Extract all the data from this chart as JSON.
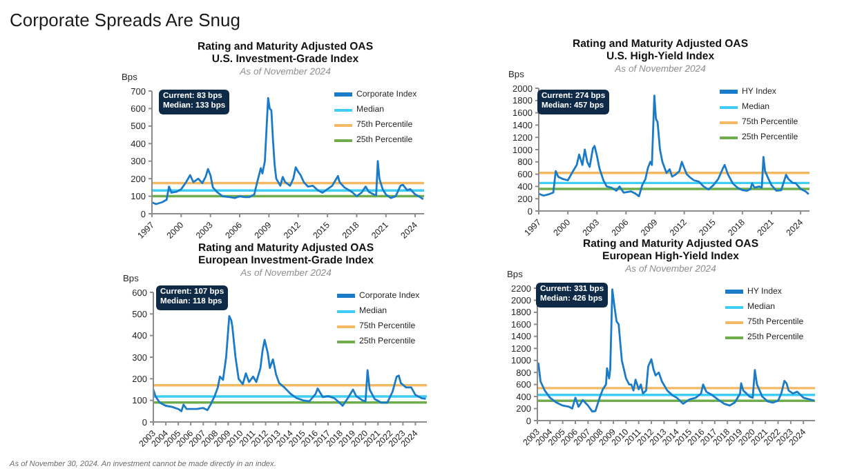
{
  "chart_data": [
    {
      "type": "other",
      "title": "Corporate Spreads Are Snug"
    },
    {
      "type": "line",
      "title": "Rating and Maturity Adjusted OAS\nU.S. Investment-Grade Index",
      "subtitle": "As of November 2024",
      "ylabel": "Bps",
      "x": [
        "1997-01",
        "1997-06",
        "1998-01",
        "1998-07",
        "1998-10",
        "1999-01",
        "1999-07",
        "2000-01",
        "2000-07",
        "2000-12",
        "2001-04",
        "2001-10",
        "2002-03",
        "2002-07",
        "2002-10",
        "2003-01",
        "2003-04",
        "2003-10",
        "2004-04",
        "2005-01",
        "2005-07",
        "2006-01",
        "2006-07",
        "2007-01",
        "2007-07",
        "2007-10",
        "2008-03",
        "2008-05",
        "2008-08",
        "2008-10",
        "2008-12",
        "2009-02",
        "2009-04",
        "2009-06",
        "2009-08",
        "2009-10",
        "2010-03",
        "2010-06",
        "2010-09",
        "2011-03",
        "2011-07",
        "2011-10",
        "2012-01",
        "2012-04",
        "2012-08",
        "2013-01",
        "2013-07",
        "2014-01",
        "2014-07",
        "2015-01",
        "2015-07",
        "2016-02",
        "2016-04",
        "2016-10",
        "2017-07",
        "2018-01",
        "2018-07",
        "2018-12",
        "2019-04",
        "2019-10",
        "2020-01",
        "2020-03",
        "2020-05",
        "2020-09",
        "2021-01",
        "2021-07",
        "2022-01",
        "2022-07",
        "2022-10",
        "2023-03",
        "2023-07",
        "2024-01",
        "2024-07",
        "2024-11"
      ],
      "series": [
        {
          "name": "Corporate Index",
          "color": "#1a7bc9",
          "values": [
            65,
            55,
            65,
            80,
            155,
            120,
            125,
            140,
            180,
            220,
            180,
            200,
            175,
            210,
            255,
            220,
            150,
            120,
            100,
            95,
            90,
            100,
            95,
            95,
            110,
            170,
            260,
            230,
            300,
            480,
            660,
            600,
            590,
            420,
            280,
            200,
            160,
            210,
            180,
            160,
            200,
            265,
            240,
            220,
            180,
            155,
            160,
            135,
            120,
            140,
            160,
            215,
            180,
            150,
            125,
            100,
            120,
            155,
            125,
            110,
            105,
            300,
            200,
            140,
            110,
            90,
            100,
            160,
            165,
            135,
            140,
            110,
            95,
            83
          ]
        }
      ],
      "xlim": [
        "1997-01",
        "2024-12"
      ],
      "xticks": [
        "1997",
        "2000",
        "2003",
        "2006",
        "2009",
        "2012",
        "2015",
        "2018",
        "2021",
        "2024"
      ],
      "ylim": [
        0,
        700
      ],
      "yticks": [
        0,
        100,
        200,
        300,
        400,
        500,
        600,
        700
      ],
      "ref_lines": [
        {
          "axis": "y",
          "value": 133,
          "label": "Median",
          "color": "#3dcdf5"
        },
        {
          "axis": "y",
          "value": 175,
          "label": "75th Percentile",
          "color": "#f4b862"
        },
        {
          "axis": "y",
          "value": 100,
          "label": "25th Percentile",
          "color": "#6fac4b"
        }
      ],
      "legend": "top right",
      "annotations": [
        "Current: 83 bps",
        "Median: 133 bps"
      ]
    },
    {
      "type": "line",
      "title": "Rating and Maturity Adjusted OAS\nU.S. High-Yield Index",
      "subtitle": "As of November 2024",
      "ylabel": "Bps",
      "x": [
        "1997-01",
        "1997-07",
        "1998-01",
        "1998-07",
        "1998-10",
        "1999-01",
        "1999-07",
        "2000-01",
        "2000-07",
        "2000-12",
        "2001-03",
        "2001-07",
        "2001-10",
        "2002-01",
        "2002-04",
        "2002-08",
        "2002-10",
        "2003-01",
        "2003-04",
        "2003-09",
        "2004-01",
        "2004-07",
        "2005-01",
        "2005-05",
        "2005-10",
        "2006-07",
        "2007-01",
        "2007-05",
        "2007-09",
        "2008-01",
        "2008-04",
        "2008-07",
        "2008-09",
        "2008-12",
        "2009-02",
        "2009-04",
        "2009-07",
        "2009-10",
        "2010-03",
        "2010-07",
        "2010-10",
        "2011-03",
        "2011-07",
        "2011-10",
        "2012-01",
        "2012-04",
        "2012-08",
        "2013-01",
        "2013-07",
        "2014-01",
        "2014-07",
        "2015-01",
        "2015-07",
        "2016-01",
        "2016-03",
        "2016-07",
        "2017-01",
        "2017-07",
        "2018-01",
        "2018-07",
        "2018-11",
        "2019-01",
        "2019-04",
        "2019-10",
        "2020-01",
        "2020-03",
        "2020-05",
        "2020-09",
        "2021-01",
        "2021-07",
        "2022-01",
        "2022-07",
        "2022-10",
        "2023-03",
        "2023-07",
        "2024-01",
        "2024-07",
        "2024-11"
      ],
      "series": [
        {
          "name": "HY Index",
          "color": "#1a7bc9",
          "values": [
            280,
            250,
            270,
            300,
            650,
            560,
            520,
            500,
            640,
            750,
            920,
            750,
            1000,
            800,
            720,
            1020,
            1060,
            900,
            700,
            500,
            400,
            380,
            330,
            400,
            300,
            320,
            280,
            240,
            420,
            520,
            700,
            800,
            750,
            1880,
            1500,
            1450,
            1000,
            800,
            620,
            680,
            560,
            600,
            650,
            800,
            700,
            600,
            550,
            500,
            480,
            400,
            350,
            420,
            520,
            700,
            750,
            600,
            450,
            380,
            340,
            330,
            360,
            450,
            380,
            400,
            380,
            880,
            650,
            530,
            420,
            330,
            340,
            590,
            520,
            460,
            450,
            360,
            320,
            274
          ]
        }
      ],
      "xlim": [
        "1997-01",
        "2024-12"
      ],
      "xticks": [
        "1997",
        "2000",
        "2003",
        "2006",
        "2009",
        "2012",
        "2015",
        "2018",
        "2021",
        "2024"
      ],
      "ylim": [
        0,
        2000
      ],
      "yticks": [
        0,
        200,
        400,
        600,
        800,
        1000,
        1200,
        1400,
        1600,
        1800,
        2000
      ],
      "ref_lines": [
        {
          "axis": "y",
          "value": 457,
          "label": "Median",
          "color": "#3dcdf5"
        },
        {
          "axis": "y",
          "value": 620,
          "label": "75th Percentile",
          "color": "#f4b862"
        },
        {
          "axis": "y",
          "value": 360,
          "label": "25th Percentile",
          "color": "#6fac4b"
        }
      ],
      "legend": "top right",
      "annotations": [
        "Current: 274 bps",
        "Median: 457 bps"
      ]
    },
    {
      "type": "line",
      "title": "Rating and Maturity Adjusted OAS\nEuropean Investment-Grade Index",
      "subtitle": "As of November 2024",
      "ylabel": "Bps",
      "x": [
        "2003-01",
        "2003-03",
        "2003-07",
        "2004-01",
        "2004-07",
        "2005-01",
        "2005-04",
        "2005-06",
        "2005-09",
        "2006-01",
        "2006-07",
        "2007-01",
        "2007-05",
        "2007-08",
        "2007-12",
        "2008-03",
        "2008-05",
        "2008-08",
        "2008-11",
        "2009-02",
        "2009-04",
        "2009-05",
        "2009-08",
        "2009-11",
        "2010-03",
        "2010-06",
        "2010-09",
        "2011-01",
        "2011-04",
        "2011-08",
        "2011-10",
        "2011-12",
        "2012-03",
        "2012-05",
        "2012-08",
        "2012-11",
        "2013-02",
        "2013-07",
        "2014-01",
        "2014-07",
        "2015-01",
        "2015-07",
        "2016-01",
        "2016-03",
        "2016-08",
        "2017-01",
        "2017-07",
        "2018-01",
        "2018-03",
        "2018-08",
        "2019-01",
        "2019-04",
        "2019-10",
        "2020-01",
        "2020-03",
        "2020-05",
        "2020-10",
        "2021-04",
        "2021-10",
        "2022-03",
        "2022-07",
        "2022-09",
        "2022-11",
        "2023-04",
        "2023-09",
        "2024-01",
        "2024-07",
        "2024-11"
      ],
      "series": [
        {
          "name": "Corporate Index",
          "color": "#1a7bc9",
          "values": [
            150,
            120,
            90,
            75,
            70,
            60,
            50,
            80,
            60,
            60,
            60,
            65,
            55,
            80,
            120,
            160,
            210,
            195,
            300,
            490,
            470,
            440,
            300,
            200,
            175,
            225,
            185,
            210,
            185,
            250,
            330,
            380,
            320,
            250,
            290,
            220,
            180,
            160,
            130,
            110,
            100,
            95,
            130,
            155,
            115,
            120,
            110,
            85,
            75,
            110,
            150,
            120,
            100,
            95,
            240,
            150,
            105,
            90,
            90,
            140,
            210,
            215,
            180,
            160,
            160,
            125,
            110,
            107
          ]
        }
      ],
      "xlim": [
        "2003-01",
        "2024-12"
      ],
      "xticks": [
        "2003",
        "2004",
        "2005",
        "2006",
        "2007",
        "2008",
        "2009",
        "2010",
        "2011",
        "2012",
        "2013",
        "2014",
        "2015",
        "2016",
        "2017",
        "2018",
        "2019",
        "2020",
        "2021",
        "2022",
        "2023",
        "2024"
      ],
      "ylim": [
        0,
        600
      ],
      "yticks": [
        0,
        100,
        200,
        300,
        400,
        500,
        600
      ],
      "ref_lines": [
        {
          "axis": "y",
          "value": 118,
          "label": "Median",
          "color": "#3dcdf5"
        },
        {
          "axis": "y",
          "value": 170,
          "label": "75th Percentile",
          "color": "#f4b862"
        },
        {
          "axis": "y",
          "value": 90,
          "label": "25th Percentile",
          "color": "#6fac4b"
        }
      ],
      "legend": "top right",
      "annotations": [
        "Current: 107 bps",
        "Median: 118 bps"
      ]
    },
    {
      "type": "line",
      "title": "Rating and Maturity Adjusted OAS\nEuropean High-Yield Index",
      "subtitle": "As of November 2024",
      "ylabel": "Bps",
      "x": [
        "2003-01",
        "2003-02",
        "2003-04",
        "2003-08",
        "2004-01",
        "2004-07",
        "2005-01",
        "2005-07",
        "2005-10",
        "2006-01",
        "2006-04",
        "2006-08",
        "2007-01",
        "2007-05",
        "2007-08",
        "2007-12",
        "2008-03",
        "2008-06",
        "2008-07",
        "2008-09",
        "2008-10",
        "2008-12",
        "2009-02",
        "2009-04",
        "2009-06",
        "2009-09",
        "2010-01",
        "2010-04",
        "2010-06",
        "2010-08",
        "2010-10",
        "2011-01",
        "2011-03",
        "2011-05",
        "2011-08",
        "2011-10",
        "2012-01",
        "2012-03",
        "2012-05",
        "2012-08",
        "2012-11",
        "2013-04",
        "2013-09",
        "2014-01",
        "2014-07",
        "2015-01",
        "2015-07",
        "2015-12",
        "2016-02",
        "2016-05",
        "2016-10",
        "2017-04",
        "2017-10",
        "2018-03",
        "2018-08",
        "2019-01",
        "2019-02",
        "2019-04",
        "2019-10",
        "2020-01",
        "2020-03",
        "2020-05",
        "2020-10",
        "2021-03",
        "2021-08",
        "2022-01",
        "2022-04",
        "2022-07",
        "2022-09",
        "2022-11",
        "2023-03",
        "2023-07",
        "2024-01",
        "2024-07",
        "2024-11"
      ],
      "series": [
        {
          "name": "HY Index",
          "color": "#1a7bc9",
          "values": [
            900,
            950,
            650,
            500,
            380,
            300,
            250,
            230,
            200,
            380,
            230,
            340,
            250,
            150,
            160,
            380,
            520,
            600,
            870,
            700,
            850,
            2180,
            1900,
            1650,
            1600,
            1000,
            700,
            600,
            600,
            500,
            680,
            520,
            600,
            450,
            500,
            900,
            1020,
            850,
            750,
            800,
            650,
            500,
            420,
            380,
            280,
            350,
            380,
            450,
            600,
            480,
            430,
            350,
            280,
            250,
            300,
            450,
            620,
            500,
            400,
            380,
            840,
            600,
            400,
            320,
            300,
            330,
            450,
            660,
            620,
            500,
            450,
            480,
            380,
            350,
            331
          ]
        }
      ],
      "xlim": [
        "2003-01",
        "2024-12"
      ],
      "xticks": [
        "2003",
        "2004",
        "2005",
        "2006",
        "2007",
        "2008",
        "2009",
        "2010",
        "2011",
        "2012",
        "2013",
        "2014",
        "2015",
        "2016",
        "2017",
        "2018",
        "2019",
        "2020",
        "2021",
        "2022",
        "2023",
        "2024"
      ],
      "ylim": [
        0,
        2200
      ],
      "yticks": [
        0,
        200,
        400,
        600,
        800,
        1000,
        1200,
        1400,
        1600,
        1800,
        2000,
        2200
      ],
      "ref_lines": [
        {
          "axis": "y",
          "value": 426,
          "label": "Median",
          "color": "#3dcdf5"
        },
        {
          "axis": "y",
          "value": 540,
          "label": "75th Percentile",
          "color": "#f4b862"
        },
        {
          "axis": "y",
          "value": 330,
          "label": "25th Percentile",
          "color": "#6fac4b"
        }
      ],
      "legend": "top right",
      "annotations": [
        "Current: 331 bps",
        "Median: 426 bps"
      ]
    },
    {
      "type": "other",
      "annotations": [
        "As of November 30, 2024. An investment cannot be made directly in an index."
      ]
    }
  ]
}
